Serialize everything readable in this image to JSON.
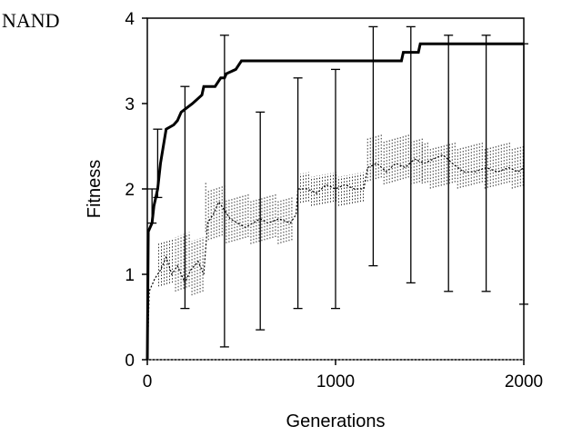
{
  "chart_data": {
    "type": "line",
    "panel_label": "NAND",
    "xlabel": "Generations",
    "ylabel": "Fitness",
    "xlim": [
      0,
      2000
    ],
    "ylim": [
      0,
      4
    ],
    "x_ticks": [
      0,
      1000,
      2000
    ],
    "y_ticks": [
      0,
      1,
      2,
      3,
      4
    ],
    "x_tick_labels": [
      "0",
      "1000",
      "2000"
    ],
    "y_tick_labels": [
      "0",
      "1",
      "2",
      "3",
      "4"
    ],
    "grid": false,
    "series": [
      {
        "style": "solid",
        "points": [
          [
            0,
            0
          ],
          [
            5,
            1.5
          ],
          [
            25,
            1.6
          ],
          [
            35,
            1.8
          ],
          [
            45,
            1.9
          ],
          [
            55,
            2.0
          ],
          [
            70,
            2.3
          ],
          [
            100,
            2.7
          ],
          [
            140,
            2.75
          ],
          [
            160,
            2.8
          ],
          [
            180,
            2.9
          ],
          [
            210,
            2.95
          ],
          [
            240,
            3.0
          ],
          [
            290,
            3.1
          ],
          [
            300,
            3.2
          ],
          [
            360,
            3.2
          ],
          [
            390,
            3.3
          ],
          [
            410,
            3.3
          ],
          [
            420,
            3.35
          ],
          [
            470,
            3.4
          ],
          [
            500,
            3.5
          ],
          [
            1350,
            3.5
          ],
          [
            1360,
            3.6
          ],
          [
            1440,
            3.6
          ],
          [
            1450,
            3.7
          ],
          [
            2000,
            3.7
          ]
        ]
      },
      {
        "style": "dotted",
        "points": [
          [
            0,
            0
          ],
          [
            10,
            0.8
          ],
          [
            40,
            0.95
          ],
          [
            70,
            1.05
          ],
          [
            100,
            1.2
          ],
          [
            130,
            1.0
          ],
          [
            160,
            1.1
          ],
          [
            200,
            0.9
          ],
          [
            230,
            1.05
          ],
          [
            270,
            1.15
          ],
          [
            300,
            1.0
          ],
          [
            320,
            1.6
          ],
          [
            350,
            1.7
          ],
          [
            380,
            1.85
          ],
          [
            410,
            1.75
          ],
          [
            440,
            1.65
          ],
          [
            480,
            1.6
          ],
          [
            520,
            1.55
          ],
          [
            560,
            1.6
          ],
          [
            600,
            1.65
          ],
          [
            640,
            1.6
          ],
          [
            700,
            1.65
          ],
          [
            760,
            1.6
          ],
          [
            790,
            1.7
          ],
          [
            800,
            2.0
          ],
          [
            850,
            2.0
          ],
          [
            900,
            1.95
          ],
          [
            950,
            2.05
          ],
          [
            1000,
            2.0
          ],
          [
            1050,
            2.05
          ],
          [
            1100,
            2.0
          ],
          [
            1150,
            2.0
          ],
          [
            1170,
            2.25
          ],
          [
            1220,
            2.3
          ],
          [
            1270,
            2.2
          ],
          [
            1320,
            2.3
          ],
          [
            1370,
            2.25
          ],
          [
            1420,
            2.35
          ],
          [
            1470,
            2.3
          ],
          [
            1520,
            2.35
          ],
          [
            1570,
            2.4
          ],
          [
            1620,
            2.3
          ],
          [
            1680,
            2.2
          ],
          [
            1740,
            2.2
          ],
          [
            1800,
            2.25
          ],
          [
            1860,
            2.2
          ],
          [
            1920,
            2.25
          ],
          [
            1970,
            2.2
          ],
          [
            2000,
            2.25
          ]
        ]
      }
    ],
    "error_bars": [
      {
        "x": 25,
        "low": 1.6,
        "high": 2.0
      },
      {
        "x": 55,
        "low": 1.9,
        "high": 2.7
      },
      {
        "x": 200,
        "low": 0.6,
        "high": 3.2
      },
      {
        "x": 410,
        "low": 0.15,
        "high": 3.8
      },
      {
        "x": 600,
        "low": 0.35,
        "high": 2.9
      },
      {
        "x": 800,
        "low": 0.6,
        "high": 3.3
      },
      {
        "x": 1000,
        "low": 0.6,
        "high": 3.4
      },
      {
        "x": 1200,
        "low": 1.1,
        "high": 3.9
      },
      {
        "x": 1400,
        "low": 0.9,
        "high": 3.9
      },
      {
        "x": 1600,
        "low": 0.8,
        "high": 3.8
      },
      {
        "x": 1800,
        "low": 0.8,
        "high": 3.8
      },
      {
        "x": 2000,
        "low": 0.65,
        "high": 3.7
      }
    ],
    "dotted_spread_segments": [
      {
        "x": [
          60,
          140
        ],
        "low": 0.85,
        "high": 1.45
      },
      {
        "x": [
          150,
          300
        ],
        "low": 0.75,
        "high": 1.5
      },
      {
        "x": [
          310,
          420
        ],
        "low": 1.4,
        "high": 2.1
      },
      {
        "x": [
          420,
          780
        ],
        "low": 1.35,
        "high": 1.95
      },
      {
        "x": [
          800,
          1160
        ],
        "low": 1.8,
        "high": 2.2
      },
      {
        "x": [
          1170,
          1460
        ],
        "low": 2.05,
        "high": 2.65
      },
      {
        "x": [
          1460,
          2000
        ],
        "low": 2.0,
        "high": 2.55
      }
    ]
  }
}
